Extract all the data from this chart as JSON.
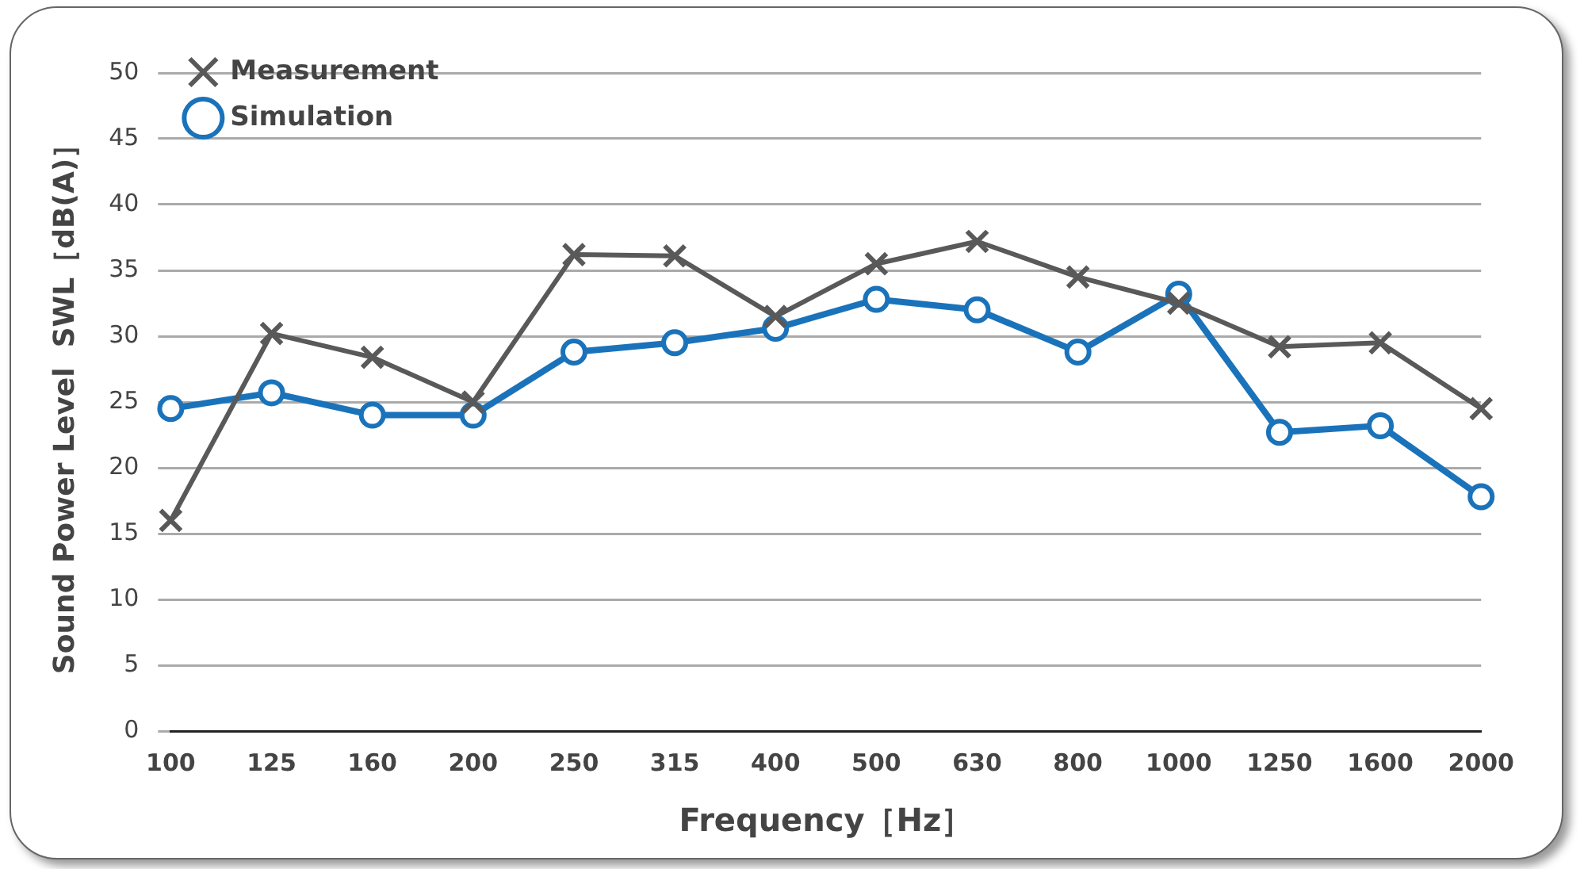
{
  "chart_data": {
    "type": "line",
    "xlabel": "Frequency［Hz］",
    "ylabel": "Sound Power Level  SWL［dB(A)］",
    "categories": [
      "100",
      "125",
      "160",
      "200",
      "250",
      "315",
      "400",
      "500",
      "630",
      "800",
      "1000",
      "1250",
      "1600",
      "2000"
    ],
    "series": [
      {
        "name": "Measurement",
        "color": "#595959",
        "marker": "cross",
        "values": [
          16,
          30.2,
          28.4,
          25,
          36.2,
          36.1,
          31.5,
          35.5,
          37.2,
          34.5,
          32.5,
          29.2,
          29.5,
          24.5
        ]
      },
      {
        "name": "Simulation",
        "color": "#1a73ba",
        "marker": "circle",
        "values": [
          24.5,
          25.7,
          24,
          24,
          28.8,
          29.5,
          30.6,
          32.8,
          32,
          28.8,
          33.2,
          22.7,
          23.2,
          17.8
        ]
      }
    ],
    "ylim": [
      0,
      50
    ],
    "yticks": [
      0,
      5,
      10,
      15,
      20,
      25,
      30,
      35,
      40,
      45,
      50
    ],
    "grid": "y",
    "legend": "top left"
  }
}
